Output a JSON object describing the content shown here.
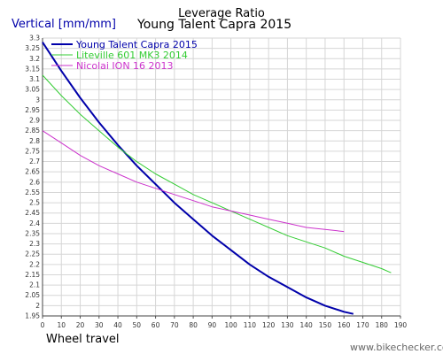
{
  "chart_data": {
    "type": "line",
    "title": "Leverage Ratio",
    "subtitle": "Young Talent Capra 2015",
    "ylabel": "Vertical [mm/mm]",
    "xlabel": "Wheel travel",
    "xlim": [
      0,
      190
    ],
    "ylim": [
      1.95,
      3.3
    ],
    "x_ticks": [
      "0",
      "10",
      "20",
      "30",
      "40",
      "50",
      "60",
      "70",
      "80",
      "90",
      "100",
      "110",
      "120",
      "130",
      "140",
      "150",
      "160",
      "170",
      "180",
      "190"
    ],
    "y_ticks": [
      "1.95",
      "2",
      "2.05",
      "2.1",
      "2.15",
      "2.2",
      "2.25",
      "2.3",
      "2.35",
      "2.4",
      "2.45",
      "2.5",
      "2.55",
      "2.6",
      "2.65",
      "2.7",
      "2.75",
      "2.8",
      "2.85",
      "2.9",
      "2.95",
      "3",
      "3.05",
      "3.1",
      "3.15",
      "3.2",
      "3.25",
      "3.3"
    ],
    "grid": true,
    "legend_position": "top-left",
    "series": [
      {
        "name": "Young Talent Capra 2015",
        "color": "#0000aa",
        "x": [
          0,
          10,
          20,
          30,
          40,
          50,
          60,
          70,
          80,
          90,
          100,
          110,
          120,
          130,
          140,
          150,
          160,
          165
        ],
        "y": [
          3.28,
          3.14,
          3.01,
          2.89,
          2.78,
          2.68,
          2.59,
          2.5,
          2.42,
          2.34,
          2.27,
          2.2,
          2.14,
          2.09,
          2.04,
          2.0,
          1.97,
          1.96
        ]
      },
      {
        "name": "Liteville 601 MK3 2014",
        "color": "#33cc33",
        "x": [
          0,
          10,
          20,
          30,
          40,
          50,
          60,
          70,
          80,
          90,
          100,
          110,
          120,
          130,
          140,
          150,
          160,
          170,
          180,
          185
        ],
        "y": [
          3.12,
          3.02,
          2.93,
          2.85,
          2.77,
          2.7,
          2.64,
          2.59,
          2.54,
          2.5,
          2.46,
          2.42,
          2.38,
          2.34,
          2.31,
          2.28,
          2.24,
          2.21,
          2.18,
          2.16
        ]
      },
      {
        "name": "Nicolai ION 16 2013",
        "color": "#cc33cc",
        "x": [
          0,
          10,
          20,
          30,
          40,
          50,
          60,
          70,
          80,
          90,
          100,
          110,
          120,
          130,
          140,
          150,
          160
        ],
        "y": [
          2.85,
          2.79,
          2.73,
          2.68,
          2.64,
          2.6,
          2.57,
          2.54,
          2.51,
          2.48,
          2.46,
          2.44,
          2.42,
          2.4,
          2.38,
          2.37,
          2.36
        ]
      }
    ]
  },
  "watermark": "www.bikechecker.com"
}
